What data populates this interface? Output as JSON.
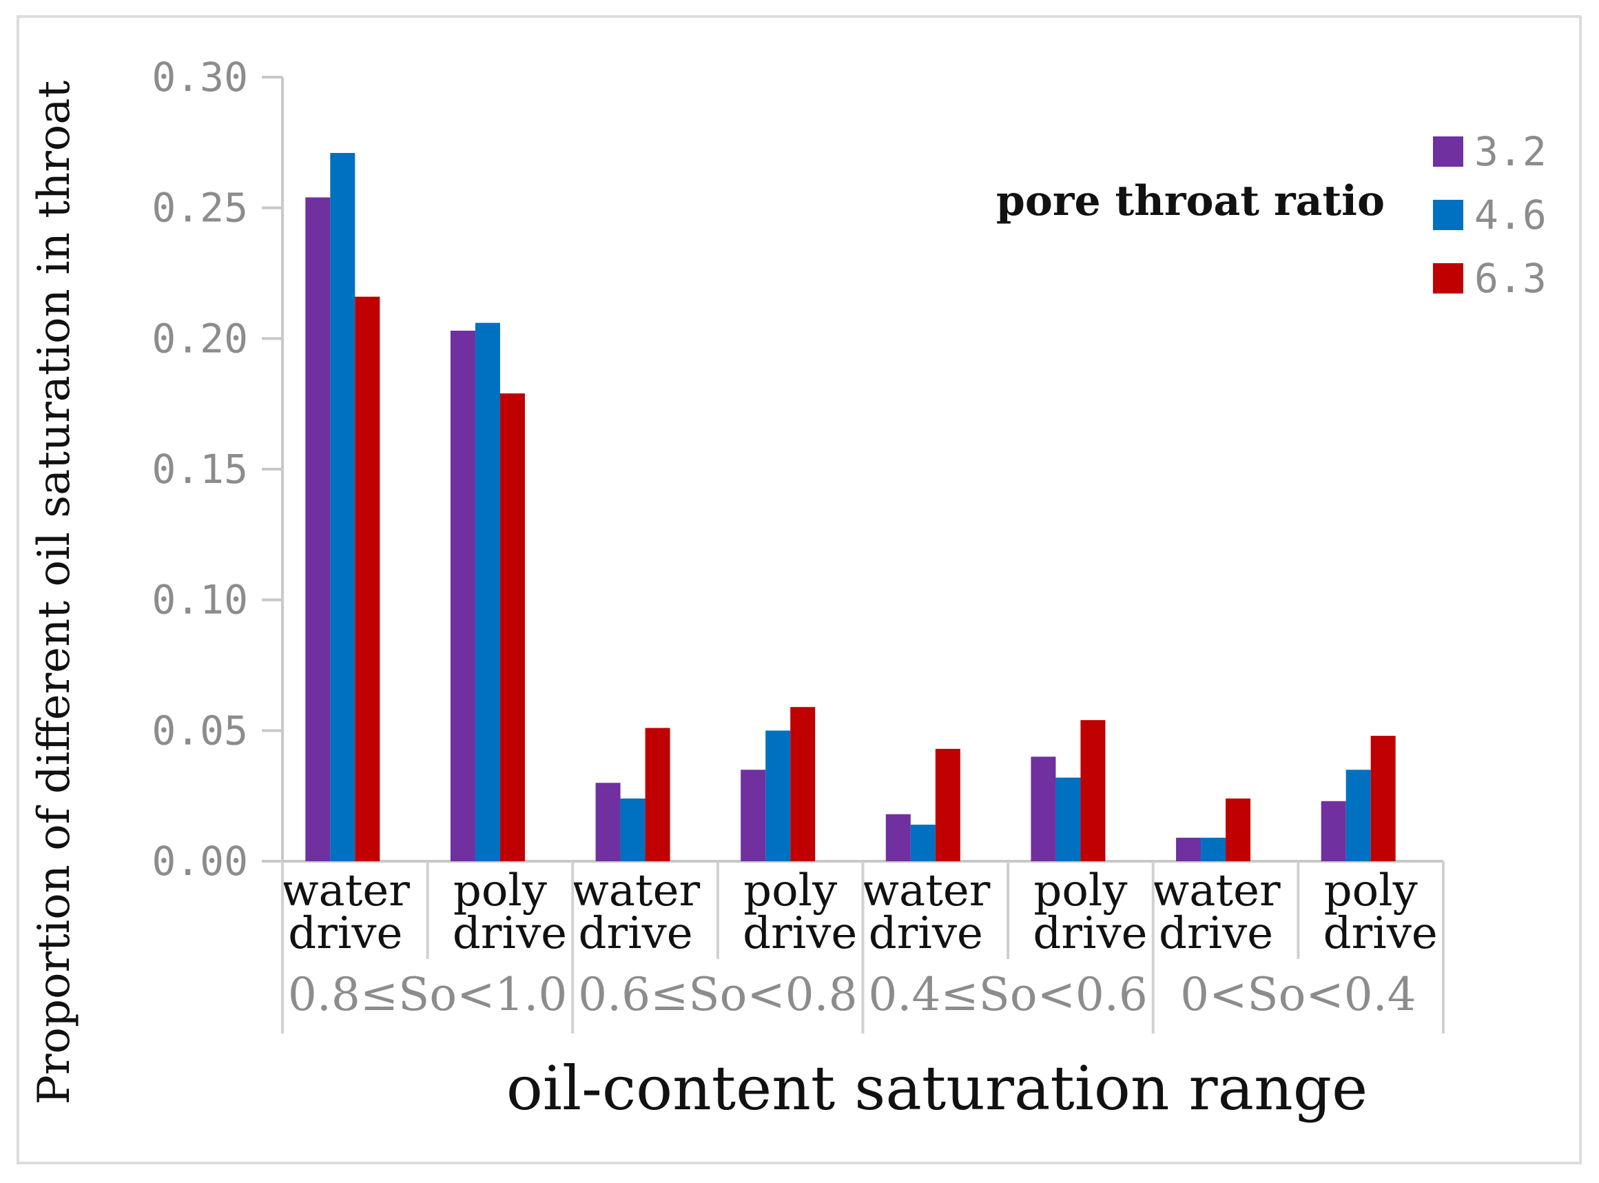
{
  "chart_data": {
    "type": "bar",
    "ylabel": "Proportion of different oil saturation in throat",
    "xlabel": "oil-content saturation range",
    "ylim": [
      0,
      0.3
    ],
    "yticks": [
      "0.00",
      "0.05",
      "0.10",
      "0.15",
      "0.20",
      "0.25",
      "0.30"
    ],
    "categories": [
      {
        "line1": "water",
        "line2": "drive",
        "group": "0.8≤So<1.0"
      },
      {
        "line1": "poly",
        "line2": "drive",
        "group": "0.8≤So<1.0"
      },
      {
        "line1": "water",
        "line2": "drive",
        "group": "0.6≤So<0.8"
      },
      {
        "line1": "poly",
        "line2": "drive",
        "group": "0.6≤So<0.8"
      },
      {
        "line1": "water",
        "line2": "drive",
        "group": "0.4≤So<0.6"
      },
      {
        "line1": "poly",
        "line2": "drive",
        "group": "0.4≤So<0.6"
      },
      {
        "line1": "water",
        "line2": "drive",
        "group": "0<So<0.4"
      },
      {
        "line1": "poly",
        "line2": "drive",
        "group": "0<So<0.4"
      }
    ],
    "groups": [
      "0.8≤So<1.0",
      "0.6≤So<0.8",
      "0.4≤So<0.6",
      "0<So<0.4"
    ],
    "legend_title": "pore throat ratio",
    "legend_position": "top-right",
    "series": [
      {
        "name": "3.2",
        "color": "#7030a0",
        "values": [
          0.254,
          0.203,
          0.03,
          0.035,
          0.018,
          0.04,
          0.009,
          0.023
        ]
      },
      {
        "name": "4.6",
        "color": "#0070c0",
        "values": [
          0.271,
          0.206,
          0.024,
          0.05,
          0.014,
          0.032,
          0.009,
          0.035
        ]
      },
      {
        "name": "6.3",
        "color": "#c00000",
        "values": [
          0.216,
          0.179,
          0.051,
          0.059,
          0.043,
          0.054,
          0.024,
          0.048
        ]
      }
    ]
  }
}
